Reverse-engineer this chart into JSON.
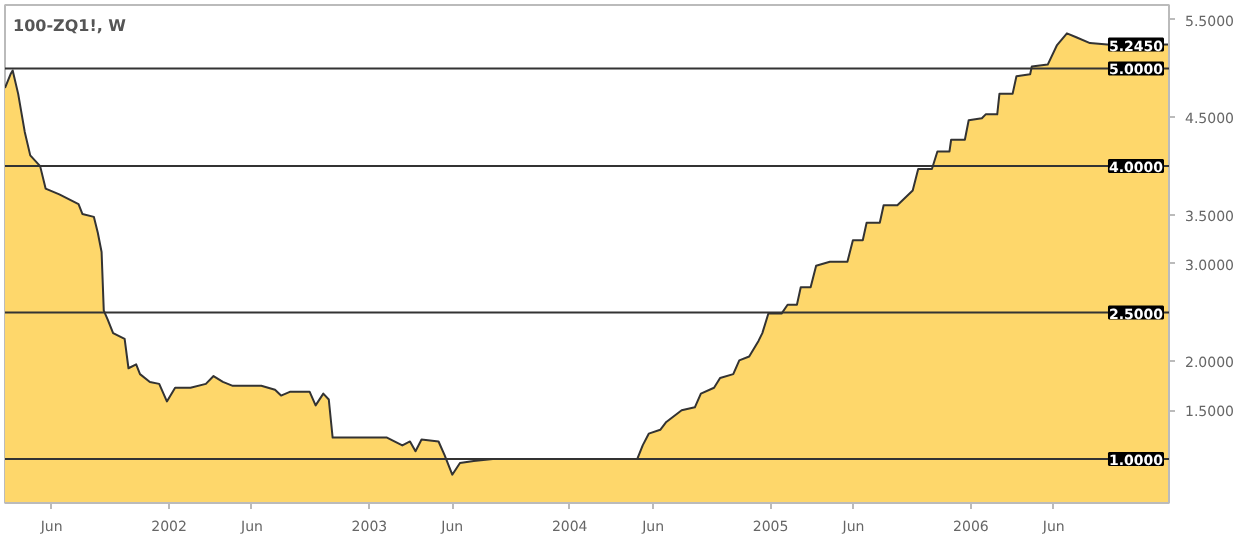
{
  "chart_data": {
    "type": "area",
    "title": "100-ZQ1!, W",
    "x": [
      "2001-03-08",
      "2001-03-18",
      "2001-03-22",
      "2001-04-01",
      "2001-04-13",
      "2001-04-23",
      "2001-05-11",
      "2001-05-21",
      "2001-06-15",
      "2001-07-20",
      "2001-07-27",
      "2001-08-17",
      "2001-08-24",
      "2001-08-31",
      "2001-09-04",
      "2001-09-11",
      "2001-09-21",
      "2001-10-12",
      "2001-10-19",
      "2001-11-02",
      "2001-11-09",
      "2001-11-27",
      "2001-12-14",
      "2001-12-28",
      "2002-01-12",
      "2002-02-09",
      "2002-03-09",
      "2002-03-23",
      "2002-04-09",
      "2002-04-27",
      "2002-06-18",
      "2002-07-13",
      "2002-07-24",
      "2002-08-10",
      "2002-09-14",
      "2002-09-25",
      "2002-10-09",
      "2002-10-19",
      "2002-10-26",
      "2003-02-02",
      "2003-03-02",
      "2003-03-16",
      "2003-03-26",
      "2003-04-06",
      "2003-05-07",
      "2003-05-18",
      "2003-06-01",
      "2003-06-15",
      "2003-07-10",
      "2003-08-14",
      "2004-05-03",
      "2004-05-13",
      "2004-05-24",
      "2004-06-14",
      "2004-06-25",
      "2004-07-23",
      "2004-08-16",
      "2004-08-27",
      "2004-09-20",
      "2004-10-01",
      "2004-10-25",
      "2004-11-05",
      "2004-11-23",
      "2004-12-10",
      "2004-12-17",
      "2004-12-28",
      "2005-01-21",
      "2005-02-01",
      "2005-02-18",
      "2005-02-25",
      "2005-03-15",
      "2005-03-25",
      "2005-04-19",
      "2005-05-21",
      "2005-05-31",
      "2005-06-18",
      "2005-06-25",
      "2005-07-19",
      "2005-07-26",
      "2005-08-20",
      "2005-09-17",
      "2005-09-27",
      "2005-10-22",
      "2005-11-01",
      "2005-11-23",
      "2005-11-26",
      "2005-12-21",
      "2005-12-28",
      "2006-01-21",
      "2006-01-28",
      "2006-02-18",
      "2006-02-22",
      "2006-03-18",
      "2006-03-25",
      "2006-04-19",
      "2006-04-22",
      "2006-05-21",
      "2006-06-07",
      "2006-06-25",
      "2006-07-12",
      "2006-08-06",
      "2006-09-17",
      "2006-12-28"
    ],
    "series": [
      {
        "color": "#fed76b",
        "values": [
          4.8,
          4.94,
          4.98,
          4.74,
          4.35,
          4.11,
          4.0,
          3.77,
          3.71,
          3.61,
          3.51,
          3.48,
          3.32,
          3.12,
          2.52,
          2.43,
          2.29,
          2.23,
          1.93,
          1.97,
          1.87,
          1.79,
          1.77,
          1.59,
          1.73,
          1.73,
          1.77,
          1.85,
          1.79,
          1.75,
          1.75,
          1.71,
          1.65,
          1.69,
          1.69,
          1.55,
          1.67,
          1.61,
          1.22,
          1.22,
          1.14,
          1.18,
          1.08,
          1.2,
          1.18,
          1.04,
          0.84,
          0.96,
          0.98,
          1.0,
          1.0,
          1.14,
          1.26,
          1.3,
          1.38,
          1.5,
          1.53,
          1.67,
          1.73,
          1.83,
          1.87,
          2.01,
          2.05,
          2.21,
          2.29,
          2.49,
          2.49,
          2.58,
          2.58,
          2.76,
          2.76,
          2.98,
          3.02,
          3.02,
          3.24,
          3.24,
          3.42,
          3.42,
          3.6,
          3.6,
          3.75,
          3.97,
          3.97,
          4.15,
          4.15,
          4.27,
          4.27,
          4.47,
          4.49,
          4.53,
          4.53,
          4.74,
          4.74,
          4.92,
          4.94,
          5.02,
          5.04,
          5.24,
          5.36,
          5.32,
          5.26,
          5.24,
          5.245
        ]
      }
    ],
    "xlim": [
      "2001-03-08",
      "2006-12-28"
    ],
    "xticks": [
      {
        "value": "2001-06-01",
        "label": "Jun"
      },
      {
        "value": "2002-01-01",
        "label": "2002"
      },
      {
        "value": "2002-06-01",
        "label": "Jun"
      },
      {
        "value": "2003-01-01",
        "label": "2003"
      },
      {
        "value": "2003-06-01",
        "label": "Jun"
      },
      {
        "value": "2004-01-01",
        "label": "2004"
      },
      {
        "value": "2004-06-01",
        "label": "Jun"
      },
      {
        "value": "2005-01-01",
        "label": "2005"
      },
      {
        "value": "2005-06-01",
        "label": "Jun"
      },
      {
        "value": "2006-01-01",
        "label": "2006"
      },
      {
        "value": "2006-06-01",
        "label": "Jun"
      }
    ],
    "ylim": [
      0.55,
      5.65
    ],
    "yticks": [
      {
        "value": 1.5,
        "label": "1.5000"
      },
      {
        "value": 2.0,
        "label": "2.0000"
      },
      {
        "value": 3.0,
        "label": "3.0000"
      },
      {
        "value": 3.5,
        "label": "3.5000"
      },
      {
        "value": 4.5,
        "label": "4.5000"
      },
      {
        "value": 5.5,
        "label": "5.5000"
      }
    ],
    "ref_lines": [
      {
        "axis": "y",
        "value": 1.0,
        "label": "1.0000"
      },
      {
        "axis": "y",
        "value": 2.5,
        "label": "2.5000"
      },
      {
        "axis": "y",
        "value": 4.0,
        "label": "4.0000"
      },
      {
        "axis": "y",
        "value": 5.0,
        "label": "5.0000"
      }
    ],
    "annotations": [
      {
        "text": "5.2450",
        "x": "2006-12-28",
        "y": 5.245
      }
    ],
    "grid": false
  }
}
